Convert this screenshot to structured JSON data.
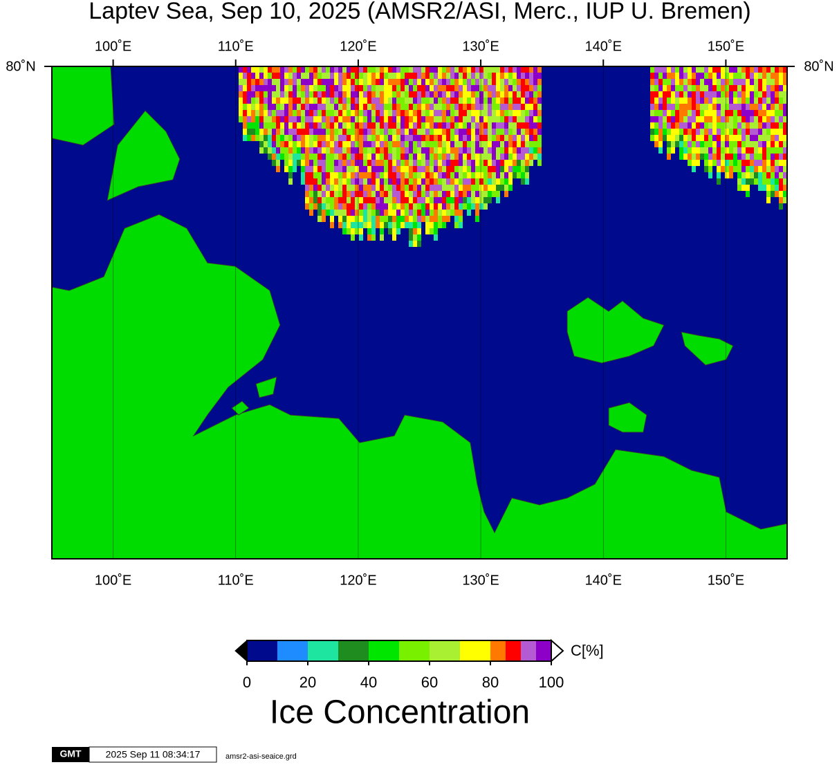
{
  "map": {
    "title": "Laptev Sea, Sep 10, 2025 (AMSR2/ASI, Merc., IUP U. Bremen)",
    "lonlim": [
      95,
      155
    ],
    "lonticks": [
      {
        "value": 100,
        "label": "100˚E"
      },
      {
        "value": 110,
        "label": "110˚E"
      },
      {
        "value": 120,
        "label": "120˚E"
      },
      {
        "value": 130,
        "label": "130˚E"
      },
      {
        "value": 140,
        "label": "140˚E"
      },
      {
        "value": 150,
        "label": "150˚E"
      }
    ],
    "lat_label": "80˚N"
  },
  "colorbar": {
    "unit": "C[%]",
    "title": "Ice Concentration",
    "lim": [
      0,
      100
    ],
    "ticks": [
      0,
      20,
      40,
      60,
      80,
      100
    ],
    "bounds": [
      0,
      10,
      20,
      30,
      40,
      50,
      60,
      70,
      80,
      85,
      90,
      95,
      100
    ],
    "colors": [
      "#000a8c",
      "#1e8cff",
      "#1ee6a0",
      "#1e8c1e",
      "#00e600",
      "#78f000",
      "#aaf032",
      "#ffff00",
      "#ff7800",
      "#ff0000",
      "#b45ad2",
      "#8c00c8"
    ]
  },
  "footer": {
    "logo": "GMT",
    "timestamp": "2025 Sep 11 08:34:17",
    "filename": "amsr2-asi-seaice.grd"
  }
}
